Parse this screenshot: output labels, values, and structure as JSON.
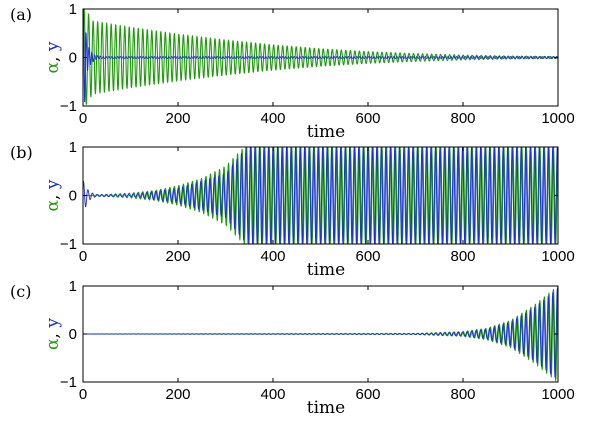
{
  "colors": {
    "alpha": "#1f9a0a",
    "y": "#1a2fd0",
    "axis": "#000000"
  },
  "chart_data": [
    {
      "type": "line",
      "panel_label": "(a)",
      "title": "",
      "xlabel": "time",
      "ylabel_parts": [
        "α",
        ", ",
        "y"
      ],
      "xlim": [
        0,
        1000
      ],
      "ylim": [
        -1,
        1
      ],
      "xticks": [
        0,
        200,
        400,
        600,
        800,
        1000
      ],
      "yticks": [
        -1,
        0,
        1
      ],
      "ytick_labels": [
        "−1",
        "0",
        "1"
      ],
      "series": [
        {
          "name": "α",
          "color": "#1f9a0a",
          "envelope_t": [
            0,
            5,
            20,
            100,
            200,
            300,
            400,
            500,
            600,
            700,
            800,
            900,
            1000
          ],
          "envelope_amp": [
            1.0,
            1.0,
            0.75,
            0.62,
            0.48,
            0.36,
            0.26,
            0.18,
            0.12,
            0.08,
            0.05,
            0.03,
            0.02
          ],
          "period": 9.5
        },
        {
          "name": "y",
          "color": "#1a2fd0",
          "envelope_t": [
            0,
            3,
            8,
            15,
            25,
            40,
            1000
          ],
          "envelope_amp": [
            1.0,
            1.0,
            0.3,
            0.15,
            0.05,
            0.02,
            0.02
          ],
          "period": 6
        }
      ]
    },
    {
      "type": "line",
      "panel_label": "(b)",
      "title": "",
      "xlabel": "time",
      "ylabel_parts": [
        "α",
        ", ",
        "y"
      ],
      "xlim": [
        0,
        1000
      ],
      "ylim": [
        -1,
        1
      ],
      "xticks": [
        0,
        200,
        400,
        600,
        800,
        1000
      ],
      "yticks": [
        -1,
        0,
        1
      ],
      "ytick_labels": [
        "−1",
        "0",
        "1"
      ],
      "series": [
        {
          "name": "α",
          "color": "#1f9a0a",
          "envelope_t": [
            0,
            50,
            100,
            150,
            200,
            250,
            300,
            340,
            360,
            1000
          ],
          "envelope_amp": [
            0.0,
            0.02,
            0.05,
            0.1,
            0.2,
            0.35,
            0.6,
            1.0,
            1.0,
            1.0
          ],
          "period": 9.5
        },
        {
          "name": "y",
          "color": "#1a2fd0",
          "envelope_t": [
            0,
            5,
            10,
            20,
            30,
            100,
            200,
            300,
            345,
            1000
          ],
          "envelope_amp": [
            0.3,
            0.25,
            0.12,
            0.05,
            0.02,
            0.02,
            0.15,
            0.45,
            1.0,
            1.0
          ],
          "period": 9.5
        }
      ]
    },
    {
      "type": "line",
      "panel_label": "(c)",
      "title": "",
      "xlabel": "time",
      "ylabel_parts": [
        "α",
        ", ",
        "y"
      ],
      "xlim": [
        0,
        1000
      ],
      "ylim": [
        -1,
        1
      ],
      "xticks": [
        0,
        200,
        400,
        600,
        800,
        1000
      ],
      "yticks": [
        -1,
        0,
        1
      ],
      "ytick_labels": [
        "−1",
        "0",
        "1"
      ],
      "series": [
        {
          "name": "α",
          "color": "#1f9a0a",
          "envelope_t": [
            0,
            700,
            800,
            850,
            900,
            950,
            1000
          ],
          "envelope_amp": [
            0.0,
            0.01,
            0.05,
            0.12,
            0.28,
            0.6,
            1.0
          ],
          "period": 9.5
        },
        {
          "name": "y",
          "color": "#1a2fd0",
          "envelope_t": [
            0,
            700,
            800,
            850,
            900,
            950,
            1000
          ],
          "envelope_amp": [
            0.0,
            0.01,
            0.04,
            0.1,
            0.25,
            0.55,
            0.95
          ],
          "period": 9.5
        }
      ]
    }
  ]
}
